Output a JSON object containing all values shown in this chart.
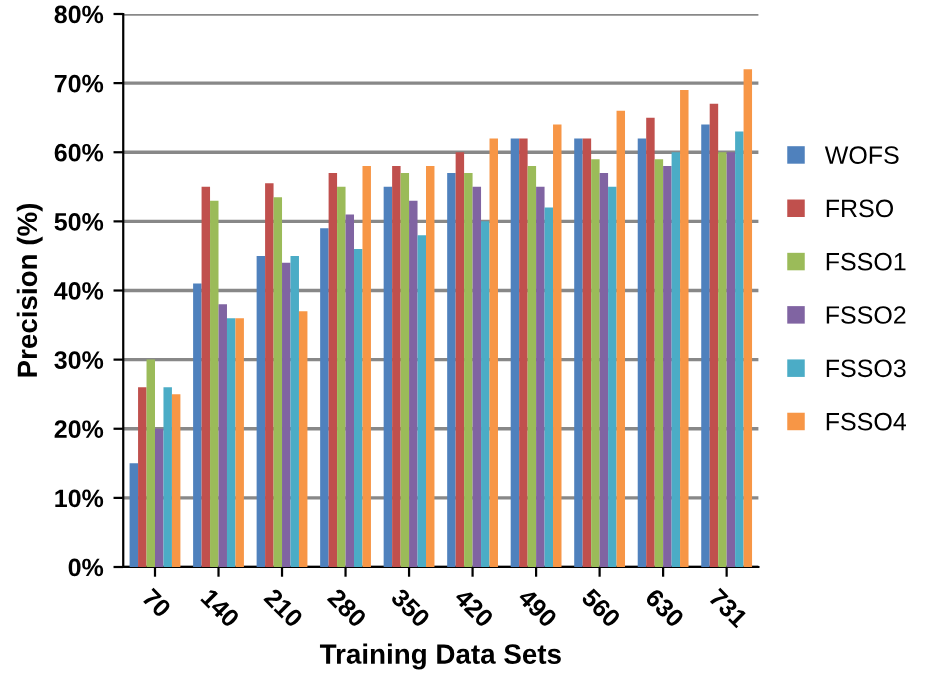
{
  "chart_data": {
    "type": "bar",
    "xlabel": "Training Data Sets",
    "ylabel": "Precision (%)",
    "categories": [
      "70",
      "140",
      "210",
      "280",
      "350",
      "420",
      "490",
      "560",
      "630",
      "731"
    ],
    "series": [
      {
        "name": "WOFS",
        "color": "#4f81bd",
        "values": [
          15,
          41,
          45,
          49,
          55,
          57,
          62,
          62,
          62,
          64
        ]
      },
      {
        "name": "FRSO",
        "color": "#c0504d",
        "values": [
          26,
          55,
          55.5,
          57,
          58,
          60,
          62,
          62,
          65,
          67
        ]
      },
      {
        "name": "FSSO1",
        "color": "#9bbb59",
        "values": [
          30,
          53,
          53.5,
          55,
          57,
          57,
          58,
          59,
          59,
          60
        ]
      },
      {
        "name": "FSSO2",
        "color": "#8064a2",
        "values": [
          20,
          38,
          44,
          51,
          53,
          55,
          55,
          57,
          58,
          60
        ]
      },
      {
        "name": "FSSO3",
        "color": "#4bacc6",
        "values": [
          26,
          36,
          45,
          46,
          48,
          50,
          52,
          55,
          60,
          63
        ]
      },
      {
        "name": "FSSO4",
        "color": "#f79646",
        "values": [
          25,
          36,
          37,
          58,
          58,
          62,
          64,
          66,
          69,
          72
        ]
      }
    ],
    "ylim": [
      0,
      80
    ],
    "yticks": [
      {
        "value": 0,
        "label": "0%"
      },
      {
        "value": 10,
        "label": "10%"
      },
      {
        "value": 20,
        "label": "20%"
      },
      {
        "value": 30,
        "label": "30%"
      },
      {
        "value": 40,
        "label": "40%"
      },
      {
        "value": 50,
        "label": "50%"
      },
      {
        "value": 60,
        "label": "60%"
      },
      {
        "value": 70,
        "label": "70%"
      },
      {
        "value": 80,
        "label": "80%"
      }
    ],
    "grid": "y",
    "legend": "right"
  }
}
